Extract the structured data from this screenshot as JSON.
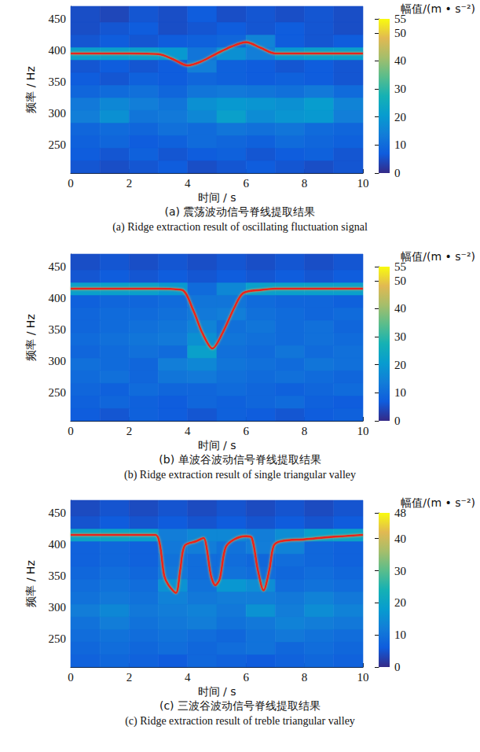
{
  "chart_data": [
    {
      "type": "heatmap",
      "title": "(a) 震荡波动信号脊线提取结果",
      "subtitle": "(a) Ridge extraction result of oscillating fluctuation signal",
      "x_label": "时间 / s",
      "y_label": "频率 / Hz",
      "xlim": [
        0,
        10
      ],
      "ylim": [
        205,
        470
      ],
      "xticks": [
        0,
        2,
        4,
        6,
        8,
        10
      ],
      "yticks": [
        250,
        300,
        350,
        400,
        450
      ],
      "cell_x_edges": [
        0,
        1,
        2,
        3,
        4,
        5,
        6,
        7,
        8,
        9,
        10
      ],
      "cell_y_edges": [
        205,
        225,
        245,
        265,
        285,
        305,
        325,
        345,
        365,
        385,
        405,
        425,
        445,
        470
      ],
      "cells": [
        [
          6,
          5,
          6,
          7,
          5,
          6,
          7,
          6,
          5,
          6
        ],
        [
          7,
          6,
          8,
          6,
          7,
          8,
          6,
          7,
          8,
          6
        ],
        [
          8,
          9,
          7,
          8,
          10,
          9,
          8,
          10,
          9,
          8
        ],
        [
          9,
          10,
          9,
          11,
          10,
          12,
          11,
          12,
          10,
          9
        ],
        [
          14,
          18,
          12,
          13,
          16,
          22,
          17,
          19,
          20,
          14
        ],
        [
          13,
          16,
          14,
          12,
          18,
          20,
          19,
          18,
          21,
          15
        ],
        [
          9,
          10,
          11,
          9,
          12,
          13,
          12,
          11,
          13,
          10
        ],
        [
          7,
          6,
          8,
          7,
          9,
          8,
          7,
          8,
          7,
          6
        ],
        [
          6,
          7,
          6,
          7,
          14,
          8,
          7,
          6,
          7,
          6
        ],
        [
          22,
          22,
          22,
          20,
          12,
          18,
          14,
          20,
          22,
          22
        ],
        [
          6,
          7,
          6,
          7,
          8,
          9,
          15,
          7,
          6,
          7
        ],
        [
          5,
          6,
          7,
          5,
          6,
          7,
          6,
          7,
          6,
          5
        ],
        [
          5,
          4,
          6,
          5,
          7,
          5,
          6,
          5,
          6,
          5
        ]
      ],
      "colorbar": {
        "label": "幅值/(m • s⁻²)",
        "lim": [
          0,
          55
        ],
        "ticks": [
          0,
          10,
          20,
          30,
          40,
          50
        ]
      },
      "series": [
        {
          "type": "line",
          "color": "#e8231b",
          "x": [
            0,
            1,
            2,
            3,
            3.5,
            4,
            4.5,
            5,
            5.5,
            6,
            6.5,
            7,
            8,
            9,
            10
          ],
          "values": [
            395,
            395,
            395,
            394,
            386,
            376,
            383,
            395,
            406,
            413,
            404,
            395,
            395,
            395,
            395
          ]
        }
      ]
    },
    {
      "type": "heatmap",
      "title": "(b) 单波谷波动信号脊线提取结果",
      "subtitle": "(b) Ridge extraction result of single triangular valley",
      "x_label": "时间 / s",
      "y_label": "频率 / Hz",
      "xlim": [
        0,
        10
      ],
      "ylim": [
        205,
        470
      ],
      "xticks": [
        0,
        2,
        4,
        6,
        8,
        10
      ],
      "yticks": [
        250,
        300,
        350,
        400,
        450
      ],
      "cell_x_edges": [
        0,
        1,
        2,
        3,
        4,
        5,
        6,
        7,
        8,
        9,
        10
      ],
      "cell_y_edges": [
        205,
        225,
        245,
        265,
        285,
        305,
        325,
        345,
        365,
        385,
        405,
        425,
        445,
        470
      ],
      "cells": [
        [
          7,
          6,
          8,
          7,
          6,
          8,
          7,
          6,
          7,
          8
        ],
        [
          8,
          9,
          8,
          7,
          9,
          8,
          9,
          10,
          8,
          7
        ],
        [
          9,
          8,
          10,
          9,
          9,
          10,
          9,
          8,
          9,
          10
        ],
        [
          10,
          11,
          9,
          12,
          13,
          11,
          10,
          11,
          10,
          9
        ],
        [
          11,
          10,
          9,
          14,
          16,
          12,
          11,
          10,
          12,
          11
        ],
        [
          9,
          10,
          11,
          10,
          22,
          11,
          10,
          12,
          10,
          11
        ],
        [
          10,
          11,
          12,
          13,
          18,
          12,
          11,
          10,
          11,
          10
        ],
        [
          9,
          10,
          11,
          12,
          15,
          11,
          12,
          10,
          11,
          9
        ],
        [
          9,
          10,
          10,
          11,
          13,
          14,
          11,
          10,
          9,
          10
        ],
        [
          8,
          9,
          9,
          10,
          12,
          12,
          10,
          9,
          9,
          8
        ],
        [
          22,
          22,
          22,
          20,
          10,
          16,
          22,
          22,
          22,
          22
        ],
        [
          6,
          7,
          6,
          7,
          6,
          7,
          6,
          7,
          6,
          7
        ],
        [
          5,
          6,
          5,
          6,
          5,
          6,
          5,
          6,
          5,
          6
        ]
      ],
      "colorbar": {
        "label": "幅值/(m • s⁻²)",
        "lim": [
          0,
          55
        ],
        "ticks": [
          0,
          10,
          20,
          30,
          40,
          50
        ]
      },
      "series": [
        {
          "type": "line",
          "color": "#e8231b",
          "x": [
            0,
            1,
            2,
            3,
            3.8,
            4.2,
            4.5,
            4.85,
            5.2,
            5.6,
            5.9,
            6.5,
            7,
            8,
            9,
            10
          ],
          "values": [
            415,
            415,
            415,
            415,
            413,
            380,
            345,
            320,
            345,
            385,
            408,
            413,
            415,
            415,
            415,
            415
          ]
        }
      ]
    },
    {
      "type": "heatmap",
      "title": "(c) 三波谷波动信号脊线提取结果",
      "subtitle": "(c) Ridge extraction result of treble triangular valley",
      "x_label": "时间 / s",
      "y_label": "频率 / Hz",
      "xlim": [
        0,
        10
      ],
      "ylim": [
        205,
        470
      ],
      "xticks": [
        0,
        2,
        4,
        6,
        8,
        10
      ],
      "yticks": [
        250,
        300,
        350,
        400,
        450
      ],
      "cell_x_edges": [
        0,
        1,
        2,
        3,
        4,
        5,
        6,
        7,
        8,
        9,
        10
      ],
      "cell_y_edges": [
        205,
        225,
        245,
        265,
        285,
        305,
        325,
        345,
        365,
        385,
        405,
        425,
        445,
        470
      ],
      "cells": [
        [
          7,
          8,
          7,
          6,
          8,
          7,
          6,
          7,
          8,
          7
        ],
        [
          8,
          9,
          8,
          9,
          8,
          9,
          10,
          8,
          9,
          8
        ],
        [
          9,
          10,
          9,
          10,
          9,
          8,
          10,
          11,
          10,
          9
        ],
        [
          10,
          12,
          10,
          11,
          12,
          10,
          11,
          13,
          12,
          11
        ],
        [
          12,
          14,
          11,
          12,
          13,
          11,
          16,
          12,
          15,
          13
        ],
        [
          10,
          11,
          10,
          13,
          11,
          12,
          12,
          11,
          13,
          11
        ],
        [
          9,
          10,
          9,
          16,
          10,
          17,
          15,
          9,
          10,
          9
        ],
        [
          8,
          9,
          8,
          11,
          9,
          10,
          9,
          8,
          9,
          8
        ],
        [
          7,
          8,
          7,
          10,
          9,
          9,
          8,
          9,
          8,
          7
        ],
        [
          7,
          8,
          7,
          11,
          12,
          10,
          12,
          13,
          8,
          7
        ],
        [
          20,
          20,
          19,
          12,
          14,
          14,
          12,
          15,
          19,
          20
        ],
        [
          5,
          6,
          5,
          6,
          5,
          6,
          5,
          6,
          5,
          6
        ],
        [
          4,
          5,
          4,
          5,
          4,
          5,
          4,
          5,
          4,
          5
        ]
      ],
      "colorbar": {
        "label": "幅值/(m • s⁻²)",
        "lim": [
          0,
          48
        ],
        "ticks": [
          0,
          10,
          20,
          30,
          40
        ]
      },
      "series": [
        {
          "type": "line",
          "color": "#e8231b",
          "x": [
            0,
            2.9,
            3.05,
            3.2,
            3.35,
            3.6,
            3.75,
            3.9,
            4.3,
            4.55,
            4.65,
            4.8,
            4.95,
            5.1,
            5.3,
            5.6,
            6.0,
            6.2,
            6.4,
            6.6,
            6.8,
            6.95,
            7.2,
            8,
            9,
            10
          ],
          "values": [
            415,
            415,
            400,
            350,
            335,
            323,
            360,
            398,
            405,
            410,
            395,
            350,
            335,
            345,
            395,
            408,
            413,
            410,
            360,
            327,
            360,
            398,
            405,
            408,
            412,
            415
          ]
        }
      ]
    }
  ]
}
